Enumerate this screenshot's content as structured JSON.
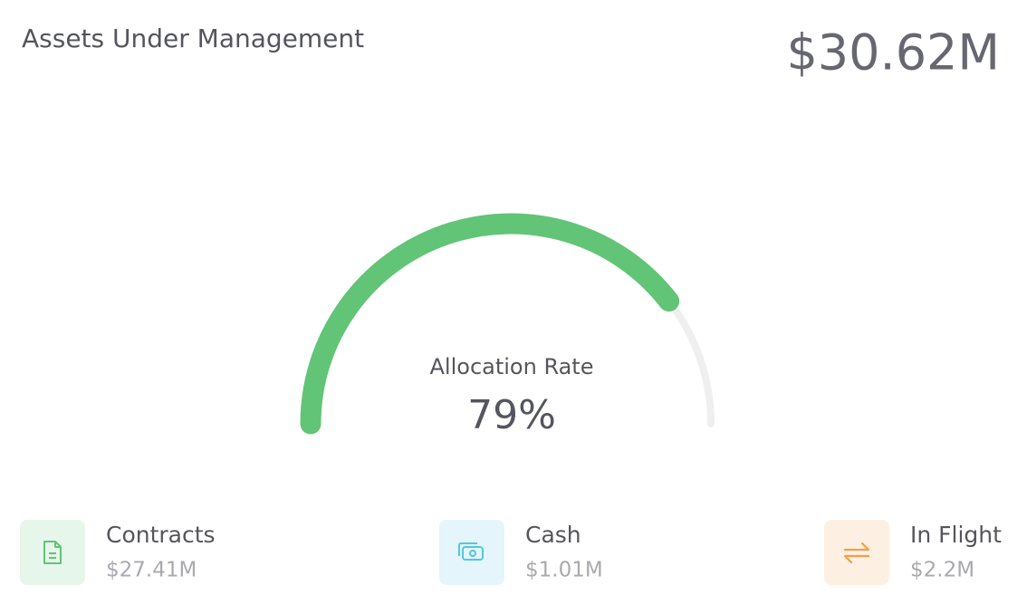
{
  "header": {
    "title": "Assets Under Management",
    "total": "$30.62M"
  },
  "chart_data": {
    "type": "gauge",
    "label": "Allocation Rate",
    "value": 79,
    "value_label": "79%",
    "ylim": [
      0,
      100
    ],
    "color": "#62c476",
    "track_color": "#efefef"
  },
  "items": [
    {
      "label": "Contracts",
      "value": "$27.41M",
      "icon": "document",
      "color": "#5fc676",
      "background": "#e7f6ea"
    },
    {
      "label": "Cash",
      "value": "$1.01M",
      "icon": "cash",
      "color": "#56c6dc",
      "background": "#e4f5fb"
    },
    {
      "label": "In Flight",
      "value": "$2.2M",
      "icon": "transfer",
      "color": "#f0a050",
      "background": "#fdf0e2"
    }
  ]
}
